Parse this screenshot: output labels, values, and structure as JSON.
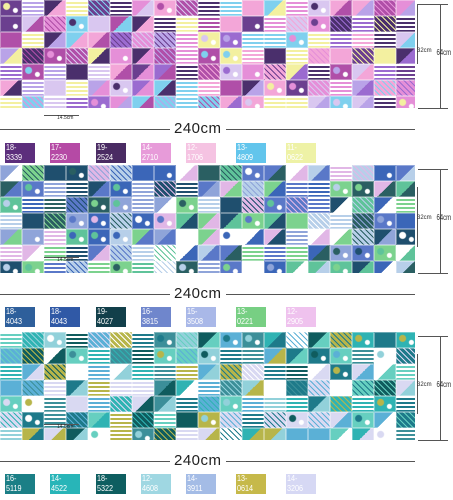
{
  "panels": [
    {
      "name": "purple",
      "base": "#c9b6e6",
      "palette": [
        "#6b3f8f",
        "#b04fa8",
        "#e58fd8",
        "#7fd0ee",
        "#f3a6d8",
        "#b9a3e8",
        "#4a2f6c",
        "#f3f0a0",
        "#d9c7f0",
        "#9b6bd0"
      ],
      "width_label": "240cm",
      "height_label": "64cm",
      "repeat_label": "32cm",
      "tile_label": "14.5cm",
      "chips": [
        {
          "code": "18-3339",
          "color": "#5c2e7c"
        },
        {
          "code": "17-2230",
          "color": "#b54aa5"
        },
        {
          "code": "19-2524",
          "color": "#4a2b63"
        },
        {
          "code": "14-2710",
          "color": "#e79bd9"
        },
        {
          "code": "12-1706",
          "color": "#f5c3e2"
        },
        {
          "code": "13-4809",
          "color": "#62c5ec"
        },
        {
          "code": "11-0622",
          "color": "#eef2a6"
        }
      ]
    },
    {
      "name": "blue-green",
      "base": "#9dcde6",
      "palette": [
        "#1f4f6e",
        "#3b66b8",
        "#5a78c8",
        "#7cd28e",
        "#2a5f62",
        "#b7cfe9",
        "#5fc39a",
        "#e1b7e6",
        "#ffffff",
        "#8fa4d9"
      ],
      "width_label": "240cm",
      "height_label": "64cm",
      "repeat_label": "32cm",
      "tile_label": "14.5cm",
      "chips": [
        {
          "code": "18-4043",
          "color": "#2e5f9b"
        },
        {
          "code": "18-4043",
          "color": "#3059a6"
        },
        {
          "code": "19-4027",
          "color": "#123f4a"
        },
        {
          "code": "16-3815",
          "color": "#6f86cc"
        },
        {
          "code": "15-3508",
          "color": "#a9b8e8"
        },
        {
          "code": "13-0221",
          "color": "#77cf83"
        },
        {
          "code": "12-2905",
          "color": "#efc2ee"
        }
      ]
    },
    {
      "name": "teal",
      "base": "#a7dfe0",
      "palette": [
        "#1e7a8a",
        "#2fb3b3",
        "#0f5c5e",
        "#92d1da",
        "#5bb0d6",
        "#b7b54a",
        "#d9d9f2",
        "#ffffff",
        "#66cfc0",
        "#3c8f99"
      ],
      "width_label": "240cm",
      "height_label": "64cm",
      "repeat_label": "32cm",
      "tile_label": "14.5cm",
      "chips": [
        {
          "code": "16-5119",
          "color": "#1b7f86"
        },
        {
          "code": "14-4522",
          "color": "#28b5b8"
        },
        {
          "code": "18-5322",
          "color": "#0e5e60"
        },
        {
          "code": "12-4608",
          "color": "#9fd7e2"
        },
        {
          "code": "14-3911",
          "color": "#a4bce6"
        },
        {
          "code": "13-0614",
          "color": "#c6b94a"
        },
        {
          "code": "14-3206",
          "color": "#d6d8f4"
        }
      ]
    }
  ]
}
